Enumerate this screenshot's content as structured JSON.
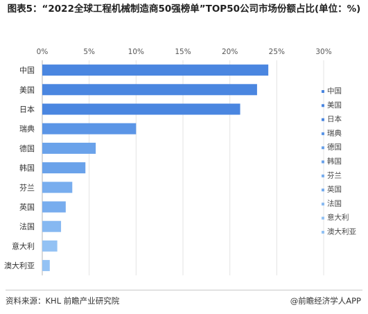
{
  "title": "图表5：“2022全球工程机械制造商50强榜单”TOP50公司市场份额占比(单位：%)",
  "source": "资料来源：KHL 前瞻产业研究院",
  "credit": "@前瞻经济学人APP",
  "chart_data": {
    "type": "bar",
    "orientation": "horizontal",
    "categories": [
      "中国",
      "美国",
      "日本",
      "瑞典",
      "德国",
      "韩国",
      "芬兰",
      "英国",
      "法国",
      "意大利",
      "澳大利亚"
    ],
    "values": [
      24.1,
      22.9,
      21.1,
      10.0,
      5.7,
      4.6,
      3.2,
      2.5,
      2.0,
      1.6,
      0.8
    ],
    "xticks": [
      "0%",
      "5%",
      "10%",
      "15%",
      "20%",
      "25%",
      "30%"
    ],
    "xlim": [
      0,
      30
    ],
    "grid": true,
    "legend": {
      "position": "right",
      "entries": [
        "中国",
        "美国",
        "日本",
        "瑞典",
        "德国",
        "韩国",
        "芬兰",
        "英国",
        "法国",
        "意大利",
        "澳大利亚"
      ]
    },
    "colors": [
      "#4a86e0",
      "#4a86e0",
      "#4a86e0",
      "#5b95e6",
      "#6aa2ea",
      "#6aa2ea",
      "#78adee",
      "#78adee",
      "#86b8f1",
      "#93c2f4",
      "#93c2f4"
    ]
  }
}
